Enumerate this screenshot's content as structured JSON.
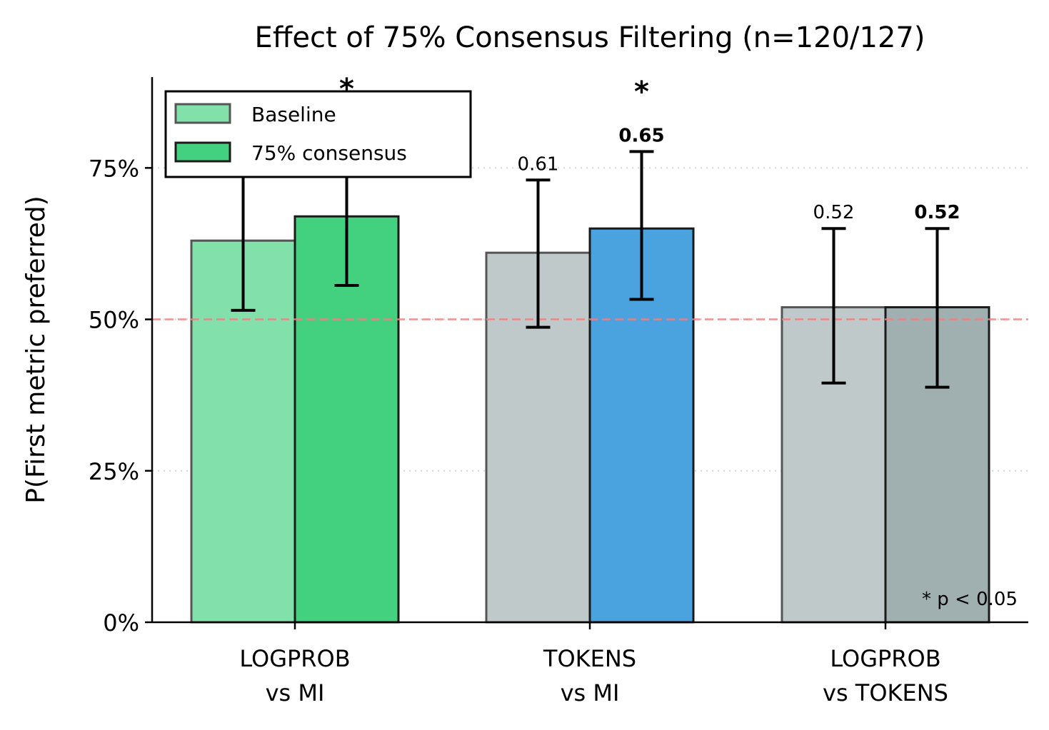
{
  "chart_data": {
    "type": "bar",
    "title": "Effect of 75% Consensus Filtering (n=120/127)",
    "xlabel": "",
    "ylabel": "P(First metric preferred)",
    "ylim": [
      0,
      0.9
    ],
    "yticks": [
      0,
      0.25,
      0.5,
      0.75
    ],
    "ytick_labels": [
      "0%",
      "25%",
      "50%",
      "75%"
    ],
    "reference_line": {
      "y": 0.5,
      "style": "dashed",
      "color": "#f08080"
    },
    "grid": "horizontal dotted",
    "categories": [
      [
        "LOGPROB",
        "vs MI"
      ],
      [
        "TOKENS",
        "vs MI"
      ],
      [
        "LOGPROB",
        "vs TOKENS"
      ]
    ],
    "series": [
      {
        "name": "Baseline",
        "values": [
          0.63,
          0.61,
          0.52
        ],
        "err_low": [
          0.515,
          0.487,
          0.395
        ],
        "err_high": [
          0.745,
          0.73,
          0.65
        ],
        "colors": [
          "#82e0aa",
          "#bfc9ca",
          "#bfc9ca"
        ],
        "edge": "#555555",
        "labels": [
          "",
          "0.61",
          "0.52"
        ]
      },
      {
        "name": "75% consensus",
        "values": [
          0.67,
          0.65,
          0.52
        ],
        "err_low": [
          0.556,
          0.533,
          0.388
        ],
        "err_high": [
          0.79,
          0.777,
          0.65
        ],
        "colors": [
          "#44d17f",
          "#4aa3df",
          "#a0b0b1"
        ],
        "edge": "#1a1a1a",
        "labels": [
          "",
          "0.65",
          "0.52"
        ]
      }
    ],
    "significance": [
      "*",
      "*",
      ""
    ],
    "legend_position": "top-left",
    "note": "* p < 0.05"
  }
}
